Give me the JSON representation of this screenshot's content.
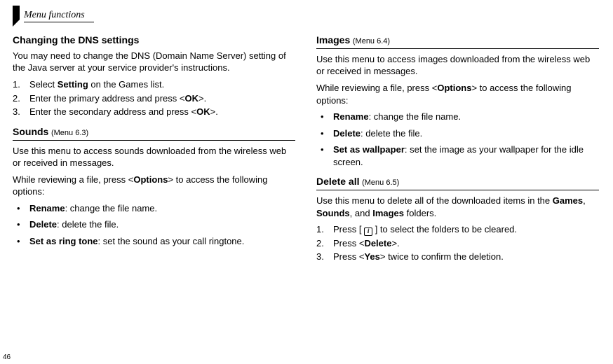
{
  "header": {
    "title": "Menu functions"
  },
  "page_number": "46",
  "left": {
    "dns": {
      "heading": "Changing the DNS settings",
      "intro": "You may need to change the DNS (Domain Name Server) setting of the Java server at your service provider's instructions.",
      "steps": [
        {
          "pre": "Select ",
          "bold": "Setting",
          "post": " on the Games list."
        },
        {
          "pre": "Enter the primary address and press <",
          "bold": "OK",
          "post": ">."
        },
        {
          "pre": "Enter the secondary address and press <",
          "bold": "OK",
          "post": ">."
        }
      ]
    },
    "sounds": {
      "heading": "Sounds",
      "sub": "(Menu 6.3)",
      "intro": "Use this menu to access sounds downloaded from the wireless web or received in messages.",
      "options_intro_pre": "While reviewing a file, press <",
      "options_intro_bold": "Options",
      "options_intro_post": "> to access the following options:",
      "bullets": [
        {
          "bold": "Rename",
          "post": ": change the file name."
        },
        {
          "bold": "Delete",
          "post": ": delete the file."
        },
        {
          "bold": "Set as ring tone",
          "post": ": set the sound as your call ringtone."
        }
      ]
    }
  },
  "right": {
    "images": {
      "heading": "Images",
      "sub": "(Menu 6.4)",
      "intro": "Use this menu to access images downloaded from the wireless web or received in messages.",
      "options_intro_pre": "While reviewing a file, press <",
      "options_intro_bold": "Options",
      "options_intro_post": "> to access the following options:",
      "bullets": [
        {
          "bold": "Rename",
          "post": ": change the file name."
        },
        {
          "bold": "Delete",
          "post": ": delete the file."
        },
        {
          "bold": "Set as wallpaper",
          "post": ": set the image as your wallpaper for the idle screen."
        }
      ]
    },
    "deleteall": {
      "heading": "Delete all",
      "sub": "(Menu 6.5)",
      "intro_pre": "Use this menu to delete all of the downloaded items in the ",
      "intro_b1": "Games",
      "intro_mid1": ", ",
      "intro_b2": "Sounds",
      "intro_mid2": ", and ",
      "intro_b3": "Images",
      "intro_post": " folders.",
      "step1_pre": "Press [ ",
      "step1_icon": "i",
      "step1_post": " ] to select the folders to be cleared.",
      "step2_pre": "Press <",
      "step2_bold": "Delete",
      "step2_post": ">.",
      "step3_pre": "Press <",
      "step3_bold": "Yes",
      "step3_post": "> twice to confirm the deletion."
    }
  }
}
